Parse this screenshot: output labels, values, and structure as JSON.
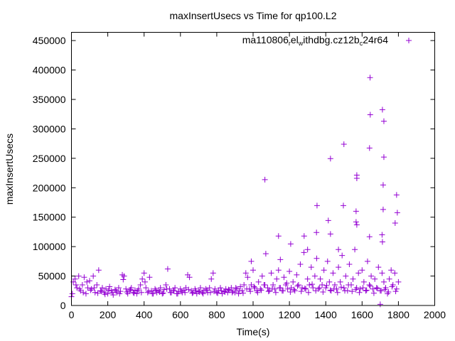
{
  "chart_data": {
    "type": "scatter",
    "title": "maxInsertUsecs vs Time for qp100.L2",
    "xlabel": "Time(s)",
    "ylabel": "maxInsertUsecs",
    "xlim": [
      0,
      2000
    ],
    "ylim": [
      0,
      464000
    ],
    "xticks": [
      0,
      200,
      400,
      600,
      800,
      1000,
      1200,
      1400,
      1600,
      1800,
      2000
    ],
    "yticks": [
      0,
      50000,
      100000,
      150000,
      200000,
      250000,
      300000,
      350000,
      400000,
      450000
    ],
    "grid": false,
    "legend": {
      "position": "top-right",
      "label_parts": [
        "ma110806",
        "r",
        "el",
        "w",
        "ithdbg.cz12b",
        "c",
        "24r64"
      ]
    },
    "series": [
      {
        "name": "ma110806_rel_withdbg.cz12b_c24r64",
        "color": "#9400d3",
        "marker": "plus",
        "baseline_a": {
          "x_start": 0,
          "x_step": 10,
          "y": [
            15000,
            40000,
            45000,
            30000,
            50000,
            25000,
            35000,
            48000,
            20000,
            30000,
            42000,
            28000,
            50000,
            22000,
            35000,
            60000,
            25000,
            30000,
            22000,
            28000,
            20000,
            32000,
            25000,
            18000,
            27000,
            22000,
            30000,
            24000,
            52000,
            50000,
            28000,
            20000,
            25000,
            30000,
            22000,
            26000,
            20000,
            28000,
            35000,
            45000,
            55000,
            30000,
            22000,
            48000,
            25000,
            20000,
            28000,
            22000,
            25000,
            30000,
            20000,
            27000,
            35000,
            62000,
            28000,
            22000,
            25000,
            30000,
            20000,
            24000,
            28000,
            22000,
            26000,
            30000,
            52000,
            48000,
            25000,
            22000,
            28000,
            20000,
            24000,
            30000,
            22000,
            26000,
            28000,
            22000,
            30000,
            45000,
            55000,
            28000,
            22000,
            25000,
            30000,
            20000,
            24000,
            28000,
            22000,
            26000,
            30000,
            24000,
            22000,
            28000,
            20000,
            32000,
            25000,
            35000,
            55000,
            48000,
            28000,
            35000,
            60000,
            30000,
            25000,
            40000,
            28000,
            50000,
            35000,
            88000,
            30000,
            25000,
            55000,
            35000,
            28000,
            45000,
            60000,
            30000,
            25000,
            48000,
            35000,
            28000,
            58000,
            30000,
            40000,
            25000,
            52000,
            35000,
            70000,
            30000,
            90000,
            28000,
            45000,
            35000,
            65000,
            30000,
            50000,
            80000,
            28000,
            45000,
            35000,
            60000,
            30000,
            75000,
            40000,
            25000,
            55000,
            35000,
            28000,
            65000,
            40000,
            85000,
            30000,
            50000,
            25000,
            70000,
            35000,
            45000,
            95000,
            30000,
            55000,
            28000,
            60000,
            40000,
            25000,
            75000,
            35000,
            50000,
            28000,
            45000,
            30000,
            65000,
            25000,
            55000,
            40000,
            30000,
            20000,
            45000,
            60000,
            35000,
            55000,
            28000,
            40000
          ]
        },
        "baseline_b": {
          "x_start": 5,
          "x_step": 20,
          "y": [
            20000,
            35000,
            28000,
            22000,
            40000,
            26000,
            30000,
            21000,
            24000,
            19000,
            26000,
            22000,
            25000,
            20000,
            44000,
            23000,
            27000,
            21000,
            25000,
            22000,
            40000,
            24000,
            20000,
            26000,
            23000,
            21000,
            28000,
            22000,
            25000,
            20000,
            24000,
            22000,
            27000,
            21000,
            25000,
            23000,
            20000,
            26000,
            22000,
            24000,
            21000,
            25000,
            23000,
            27000,
            22000,
            30000,
            25000,
            21000,
            28000,
            24000,
            32000,
            22000,
            26000,
            35000,
            24000,
            28000,
            22000,
            30000,
            25000,
            38000,
            23000,
            27000,
            33000,
            24000,
            29000,
            22000,
            36000,
            25000,
            30000,
            23000,
            34000,
            26000,
            28000,
            22000,
            31000,
            25000,
            35000,
            24000,
            27000,
            22000,
            30000,
            26000,
            33000,
            21000,
            29000,
            25000,
            27000,
            23000,
            32000,
            24000
          ]
        },
        "outliers": [
          [
            1065,
            213700
          ],
          [
            1644,
            387000
          ],
          [
            1712,
            332600
          ],
          [
            1645,
            324000
          ],
          [
            1720,
            313000
          ],
          [
            1500,
            274000
          ],
          [
            1641,
            267500
          ],
          [
            1426,
            249500
          ],
          [
            1720,
            252000
          ],
          [
            1571,
            221500
          ],
          [
            1571,
            216000
          ],
          [
            1716,
            204700
          ],
          [
            1790,
            187800
          ],
          [
            1352,
            169700
          ],
          [
            1497,
            169700
          ],
          [
            1716,
            163000
          ],
          [
            1794,
            157700
          ],
          [
            1567,
            160000
          ],
          [
            1567,
            142000
          ],
          [
            1571,
            137000
          ],
          [
            1414,
            144400
          ],
          [
            1782,
            140000
          ],
          [
            1349,
            124000
          ],
          [
            1426,
            121500
          ],
          [
            1140,
            117900
          ],
          [
            1281,
            117900
          ],
          [
            1641,
            116700
          ],
          [
            1710,
            120000
          ],
          [
            1207,
            104600
          ],
          [
            1712,
            108000
          ],
          [
            990,
            75000
          ],
          [
            1150,
            78000
          ],
          [
            1300,
            95000
          ],
          [
            1470,
            95000
          ],
          [
            1700,
            2000
          ]
        ]
      }
    ]
  }
}
